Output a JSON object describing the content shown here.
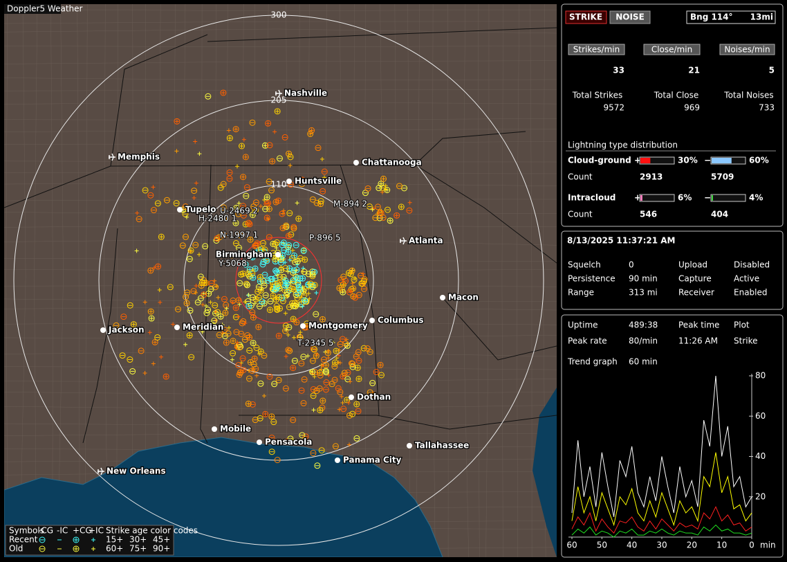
{
  "map": {
    "title": "Doppler5 Weather",
    "ring_labels": [
      "300",
      "205",
      "110"
    ],
    "cities": [
      "Nashville",
      "Memphis",
      "Chattanooga",
      "Huntsville",
      "Tupelo",
      "Birmingham",
      "Atlanta",
      "Macon",
      "Jackson",
      "Meridian",
      "Montgomery",
      "Columbus",
      "Dothan",
      "Mobile",
      "Pensacola",
      "Tallahassee",
      "Panama City",
      "New Orleans"
    ],
    "tracks": [
      "U-2469 2",
      "H-2480 1",
      "M-894 2",
      "P-896 5",
      "T-2345 5",
      "Y-5068",
      "N-1997 1"
    ]
  },
  "legend": {
    "symbols": "Symbols",
    "types": [
      "-CG",
      "-IC",
      "+CG",
      "+IC"
    ],
    "age_title": "Strike age color codes",
    "rows": [
      "Recent",
      "Old"
    ],
    "ages": [
      "15+",
      "30+",
      "45+",
      "60+",
      "75+",
      "90+"
    ]
  },
  "status": {
    "buttons": [
      "STRIKE",
      "NOISE"
    ],
    "bearing": "Bng 114°",
    "distance": "13mi",
    "rates": [
      {
        "label": "Strikes/min",
        "value": 33,
        "total_label": "Total Strikes",
        "total": 9572
      },
      {
        "label": "Close/min",
        "value": 21,
        "total_label": "Total Close",
        "total": 969
      },
      {
        "label": "Noises/min",
        "value": 5,
        "total_label": "Total Noises",
        "total": 733
      }
    ],
    "distribution": {
      "title": "Lightning type distribution",
      "plus_sign": "+",
      "minus_sign": "−",
      "rows": [
        {
          "name": "Cloud-ground",
          "plus": {
            "value": 30,
            "label": "30%"
          },
          "minus": {
            "value": 60,
            "label": "60%"
          },
          "count_label": "Count",
          "plus_count": 2913,
          "minus_count": 5709
        },
        {
          "name": "Intracloud",
          "plus": {
            "value": 6,
            "label": "6%"
          },
          "minus": {
            "value": 4,
            "label": "4%"
          },
          "count_label": "Count",
          "plus_count": 546,
          "minus_count": 404
        }
      ]
    }
  },
  "receiver": {
    "datetime": "8/13/2025 11:37:21 AM",
    "rows": [
      [
        "Squelch",
        "0",
        "Upload",
        "Disabled"
      ],
      [
        "Persistence",
        "90 min",
        "Capture",
        "Active"
      ],
      [
        "Range",
        "313 mi",
        "Receiver",
        "Enabled"
      ]
    ]
  },
  "stats": {
    "rows": [
      [
        "Uptime",
        "489:38",
        "Peak time",
        "Plot"
      ],
      [
        "Peak rate",
        "80/min",
        "11:26 AM",
        "Strike"
      ]
    ],
    "trend_label": "Trend graph",
    "trend_span": "60 min"
  },
  "chart_data": {
    "type": "line",
    "x": [
      60,
      58,
      56,
      54,
      52,
      50,
      48,
      46,
      44,
      42,
      40,
      38,
      36,
      34,
      32,
      30,
      28,
      26,
      24,
      22,
      20,
      18,
      16,
      14,
      12,
      10,
      8,
      6,
      4,
      2,
      0
    ],
    "series": [
      {
        "name": "Strike",
        "color": "#ffffff",
        "values": [
          12,
          48,
          20,
          35,
          15,
          42,
          25,
          10,
          38,
          30,
          45,
          22,
          15,
          30,
          18,
          40,
          25,
          12,
          35,
          20,
          28,
          15,
          58,
          45,
          80,
          40,
          55,
          25,
          30,
          15,
          20
        ]
      },
      {
        "name": "Close",
        "color": "#ffff00",
        "values": [
          8,
          25,
          12,
          20,
          8,
          22,
          14,
          6,
          20,
          16,
          24,
          12,
          8,
          18,
          10,
          22,
          14,
          6,
          18,
          12,
          15,
          8,
          30,
          25,
          42,
          22,
          30,
          14,
          16,
          8,
          12
        ]
      },
      {
        "name": "Noise",
        "color": "#ff2020",
        "values": [
          4,
          10,
          6,
          12,
          3,
          9,
          5,
          2,
          8,
          7,
          10,
          5,
          3,
          8,
          4,
          9,
          6,
          3,
          7,
          5,
          6,
          4,
          12,
          9,
          15,
          8,
          11,
          6,
          7,
          3,
          5
        ]
      },
      {
        "name": "Intracloud",
        "color": "#20e020",
        "values": [
          1,
          4,
          2,
          5,
          1,
          3,
          2,
          0,
          3,
          2,
          4,
          1,
          1,
          3,
          2,
          4,
          2,
          1,
          3,
          2,
          2,
          1,
          5,
          3,
          6,
          3,
          4,
          2,
          2,
          1,
          2
        ]
      }
    ],
    "xlim": [
      60,
      0
    ],
    "ylim": [
      0,
      80
    ],
    "yticks": [
      80,
      60,
      40,
      20
    ],
    "xticks": [
      60,
      50,
      40,
      30,
      20,
      10,
      0
    ],
    "x_unit": "min"
  }
}
